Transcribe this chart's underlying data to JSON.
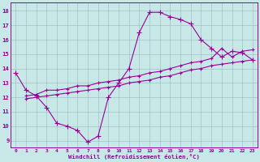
{
  "bg_color": "#c8e8e8",
  "line_color": "#990099",
  "grid_color": "#99bbbb",
  "xlabel": "Windchill (Refroidissement éolien,°C)",
  "ylim": [
    8.5,
    18.6
  ],
  "xlim": [
    -0.5,
    23.5
  ],
  "yticks": [
    9,
    10,
    11,
    12,
    13,
    14,
    15,
    16,
    17,
    18
  ],
  "xticks": [
    0,
    1,
    2,
    3,
    4,
    5,
    6,
    7,
    8,
    9,
    10,
    11,
    12,
    13,
    14,
    15,
    16,
    17,
    18,
    19,
    20,
    21,
    22,
    23
  ],
  "line1_x": [
    0,
    1,
    2,
    3,
    4,
    5,
    6,
    7,
    8,
    9,
    10,
    11,
    12,
    13,
    14,
    15,
    16,
    17,
    18,
    19,
    20,
    21,
    22,
    23
  ],
  "line1_y": [
    13.7,
    12.5,
    12.1,
    11.3,
    10.2,
    10.0,
    9.7,
    8.9,
    9.3,
    12.0,
    13.0,
    14.0,
    16.5,
    17.9,
    17.9,
    17.6,
    17.4,
    17.1,
    16.0,
    15.4,
    14.8,
    15.2,
    15.1,
    14.6
  ],
  "line2_x": [
    1,
    2,
    3,
    4,
    5,
    6,
    7,
    8,
    9,
    10,
    11,
    12,
    13,
    14,
    15,
    16,
    17,
    18,
    19,
    20,
    21,
    22,
    23
  ],
  "line2_y": [
    12.1,
    12.2,
    12.5,
    12.5,
    12.6,
    12.8,
    12.8,
    13.0,
    13.1,
    13.2,
    13.4,
    13.5,
    13.7,
    13.8,
    14.0,
    14.2,
    14.4,
    14.5,
    14.7,
    15.4,
    14.8,
    15.2,
    15.3
  ],
  "line3_x": [
    1,
    2,
    3,
    4,
    5,
    6,
    7,
    8,
    9,
    10,
    11,
    12,
    13,
    14,
    15,
    16,
    17,
    18,
    19,
    20,
    21,
    22,
    23
  ],
  "line3_y": [
    11.9,
    12.0,
    12.1,
    12.2,
    12.3,
    12.4,
    12.5,
    12.6,
    12.7,
    12.8,
    13.0,
    13.1,
    13.2,
    13.4,
    13.5,
    13.7,
    13.9,
    14.0,
    14.2,
    14.3,
    14.4,
    14.5,
    14.6
  ]
}
